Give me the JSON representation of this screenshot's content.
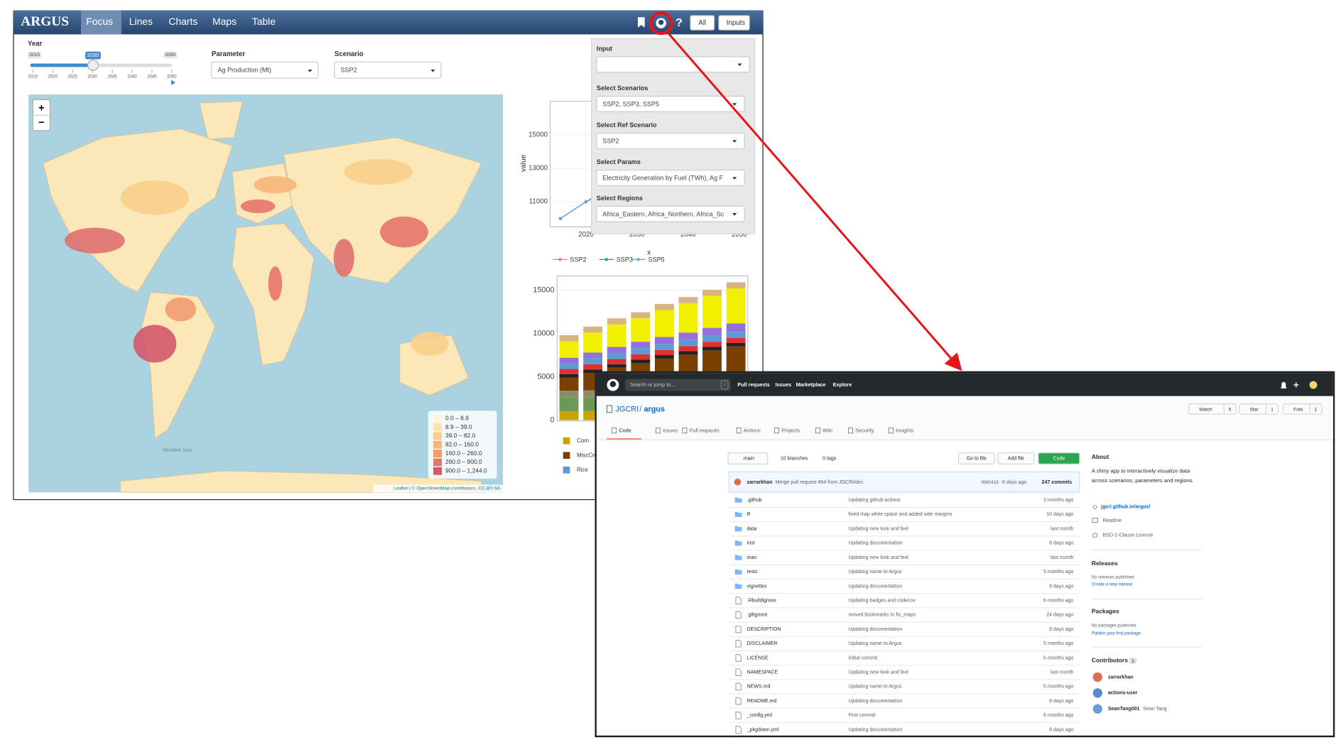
{
  "argus": {
    "brand": "ARGUS",
    "tabs": [
      "Focus",
      "Lines",
      "Charts",
      "Maps",
      "Table"
    ],
    "buttons": [
      "All",
      "Inputs"
    ],
    "help": "?",
    "year": {
      "label": "Year",
      "min": "2015",
      "selected": "2030",
      "max": "2050",
      "ticks": [
        "2015",
        "2020",
        "2025",
        "2030",
        "2035",
        "2040",
        "2045",
        "2050"
      ]
    },
    "parameter": {
      "label": "Parameter",
      "value": "Ag Production (Mt)"
    },
    "scenario": {
      "label": "Scenario",
      "value": "SSP2"
    },
    "map": {
      "zoom_in": "+",
      "zoom_out": "−",
      "sea_label": "Weddell Sea",
      "legend": [
        {
          "label": "0.0 – 8.9",
          "color": "#fdf6d3"
        },
        {
          "label": "8.9 – 39.0",
          "color": "#fbe3a8"
        },
        {
          "label": "39.0 – 82.0",
          "color": "#f9cf8c"
        },
        {
          "label": "82.0 – 160.0",
          "color": "#f6b57a"
        },
        {
          "label": "160.0 – 260.0",
          "color": "#f19b70"
        },
        {
          "label": "260.0 – 900.0",
          "color": "#e5746b"
        },
        {
          "label": "900.0 – 1,244.0",
          "color": "#d5586c"
        }
      ],
      "attribution": "Leaflet | © OpenStreetMap contributors, CC-BY-SA"
    },
    "line_chart": {
      "type": "line",
      "ylabel": "value",
      "xlabel": "x",
      "x": [
        2015,
        2020,
        2025,
        2030,
        2035,
        2040,
        2045,
        2050
      ],
      "xlim": [
        2013,
        2051
      ],
      "xticks": [
        2020,
        2030,
        2040,
        2050
      ],
      "ylim": [
        9500,
        17000
      ],
      "yticks": [
        11000,
        13000,
        15000
      ],
      "series": [
        {
          "name": "SSP2",
          "color": "#f8766d",
          "values": [
            10000,
            11000,
            11700,
            12400,
            13000,
            13500,
            14100,
            14600
          ]
        },
        {
          "name": "SSP3",
          "color": "#00ba38",
          "values": [
            10000,
            11000,
            11800,
            12500,
            13150,
            13700,
            14300,
            14900
          ]
        },
        {
          "name": "SSP5",
          "color": "#619cff",
          "values": [
            10000,
            11000,
            12000,
            13000,
            14100,
            15000,
            15900,
            16900
          ]
        }
      ]
    },
    "bar_chart": {
      "type": "bar",
      "ylim": [
        -105,
        16650
      ],
      "yticks": [
        0,
        5000,
        10000,
        15000
      ],
      "series": [
        {
          "name": "Corn",
          "color": "#c9a400",
          "values": [
            1000,
            1050,
            1100,
            1150,
            1200,
            1250,
            1300,
            1350
          ]
        },
        {
          "color": "#6a9a58",
          "values": [
            1600,
            1600,
            1650,
            1650,
            1700,
            1700,
            1750,
            1750
          ]
        },
        {
          "color": "#8c8c6c",
          "values": [
            800,
            800,
            800,
            800,
            800,
            800,
            800,
            800
          ]
        },
        {
          "name": "MiscCrop",
          "color": "#7b3f00",
          "values": [
            1500,
            2000,
            2500,
            3000,
            3400,
            3800,
            4200,
            4600
          ]
        },
        {
          "color": "#222222",
          "values": [
            400,
            400,
            400,
            400,
            400,
            400,
            400,
            400
          ]
        },
        {
          "color": "#e03030",
          "values": [
            600,
            600,
            600,
            600,
            600,
            600,
            600,
            600
          ]
        },
        {
          "name": "Rice",
          "color": "#5a9bd5",
          "values": [
            700,
            700,
            700,
            700,
            700,
            700,
            700,
            700
          ]
        },
        {
          "color": "#9370db",
          "values": [
            600,
            650,
            700,
            750,
            800,
            850,
            900,
            950
          ]
        },
        {
          "color": "#f0f000",
          "values": [
            1900,
            2300,
            2600,
            2700,
            3100,
            3400,
            3700,
            4050
          ]
        },
        {
          "color": "#d9b382",
          "values": [
            700,
            700,
            700,
            700,
            700,
            700,
            700,
            700
          ]
        }
      ]
    },
    "inputs_panel": {
      "fields": [
        {
          "label": "Input"
        },
        {
          "label": "Select Scenarios",
          "value": "SSP2, SSP3, SSP5"
        },
        {
          "label": "Select Ref Scenario",
          "value": "SSP2"
        },
        {
          "label": "Select Params",
          "value": "Electricity Generation by Fuel (TWh), Ag F"
        },
        {
          "label": "Select Regions",
          "value": "Africa_Eastern, Africa_Northern, Africa_Sc"
        }
      ]
    }
  },
  "github": {
    "search": "Search or jump to...",
    "search_key": "/",
    "nav": [
      "Pull requests",
      "Issues",
      "Marketplace",
      "Explore"
    ],
    "repo": {
      "owner": "JGCRI",
      "separator": "/",
      "name": "argus"
    },
    "actions": [
      {
        "label": "Watch",
        "count": 5
      },
      {
        "label": "Star",
        "count": 1
      },
      {
        "label": "Fork",
        "count": 1
      }
    ],
    "tabs": [
      "Code",
      "Issues",
      "Pull requests",
      "Actions",
      "Projects",
      "Wiki",
      "Security",
      "Insights"
    ],
    "branch": "main",
    "branches": "10 branches",
    "tags": "0 tags",
    "buttons": [
      "Go to file",
      "Add file",
      "Code"
    ],
    "commit": {
      "author": "zarrarkhan",
      "message": "Merge pull request #64 from JGCRI/dev",
      "sha": "f885418",
      "age": "8 days ago",
      "count": "247 commits"
    },
    "folders": [
      {
        "name": ".github",
        "message": "Updating github actions",
        "age": "3 months ago"
      },
      {
        "name": "R",
        "message": "fixed map white space and added side margins",
        "age": "10 days ago"
      },
      {
        "name": "data",
        "message": "Updating new look and feel",
        "age": "last month"
      },
      {
        "name": "inst",
        "message": "Updating documentation",
        "age": "8 days ago"
      },
      {
        "name": "man",
        "message": "Updating new look and feel",
        "age": "last month"
      },
      {
        "name": "tests",
        "message": "Updating name to Argus",
        "age": "5 months ago"
      },
      {
        "name": "vignettes",
        "message": "Updating documentation",
        "age": "8 days ago"
      }
    ],
    "files": [
      {
        "name": ".Rbuildignore",
        "message": "Updating badges and codecov",
        "age": "6 months ago"
      },
      {
        "name": ".gitignore",
        "message": "moved bookmarks to fix_maps",
        "age": "24 days ago"
      },
      {
        "name": "DESCRIPTION",
        "message": "Updating documentation",
        "age": "8 days ago"
      },
      {
        "name": "DISCLAIMER",
        "message": "Updating name to Argus",
        "age": "5 months ago"
      },
      {
        "name": "LICENSE",
        "message": "Initial commit",
        "age": "6 months ago"
      },
      {
        "name": "NAMESPACE",
        "message": "Updating new look and feel",
        "age": "last month"
      },
      {
        "name": "NEWS.md",
        "message": "Updating name to Argus",
        "age": "5 months ago"
      },
      {
        "name": "README.md",
        "message": "Updating documentation",
        "age": "8 days ago"
      },
      {
        "name": "_config.yml",
        "message": "First commit",
        "age": "6 months ago"
      },
      {
        "name": "_pkgdown.yml",
        "message": "Updating documentation",
        "age": "8 days ago"
      }
    ],
    "about": {
      "title": "About",
      "description": "A shiny app to interactively visualize data across scenarios, parameters and regions.",
      "link": "jgcri.github.io/argus/",
      "readme": "Readme",
      "license": "BSD-2-Clause License"
    },
    "releases": {
      "title": "Releases",
      "note": "No releases published",
      "link": "Create a new release"
    },
    "packages": {
      "title": "Packages",
      "note": "No packages published",
      "link": "Publish your first package"
    },
    "contributors": {
      "title": "Contributors",
      "count": 3,
      "people": [
        {
          "login": "zarrarkhan"
        },
        {
          "login": "actions-user"
        },
        {
          "login": "SeanTang001",
          "name": "Sean Tang"
        }
      ]
    }
  }
}
